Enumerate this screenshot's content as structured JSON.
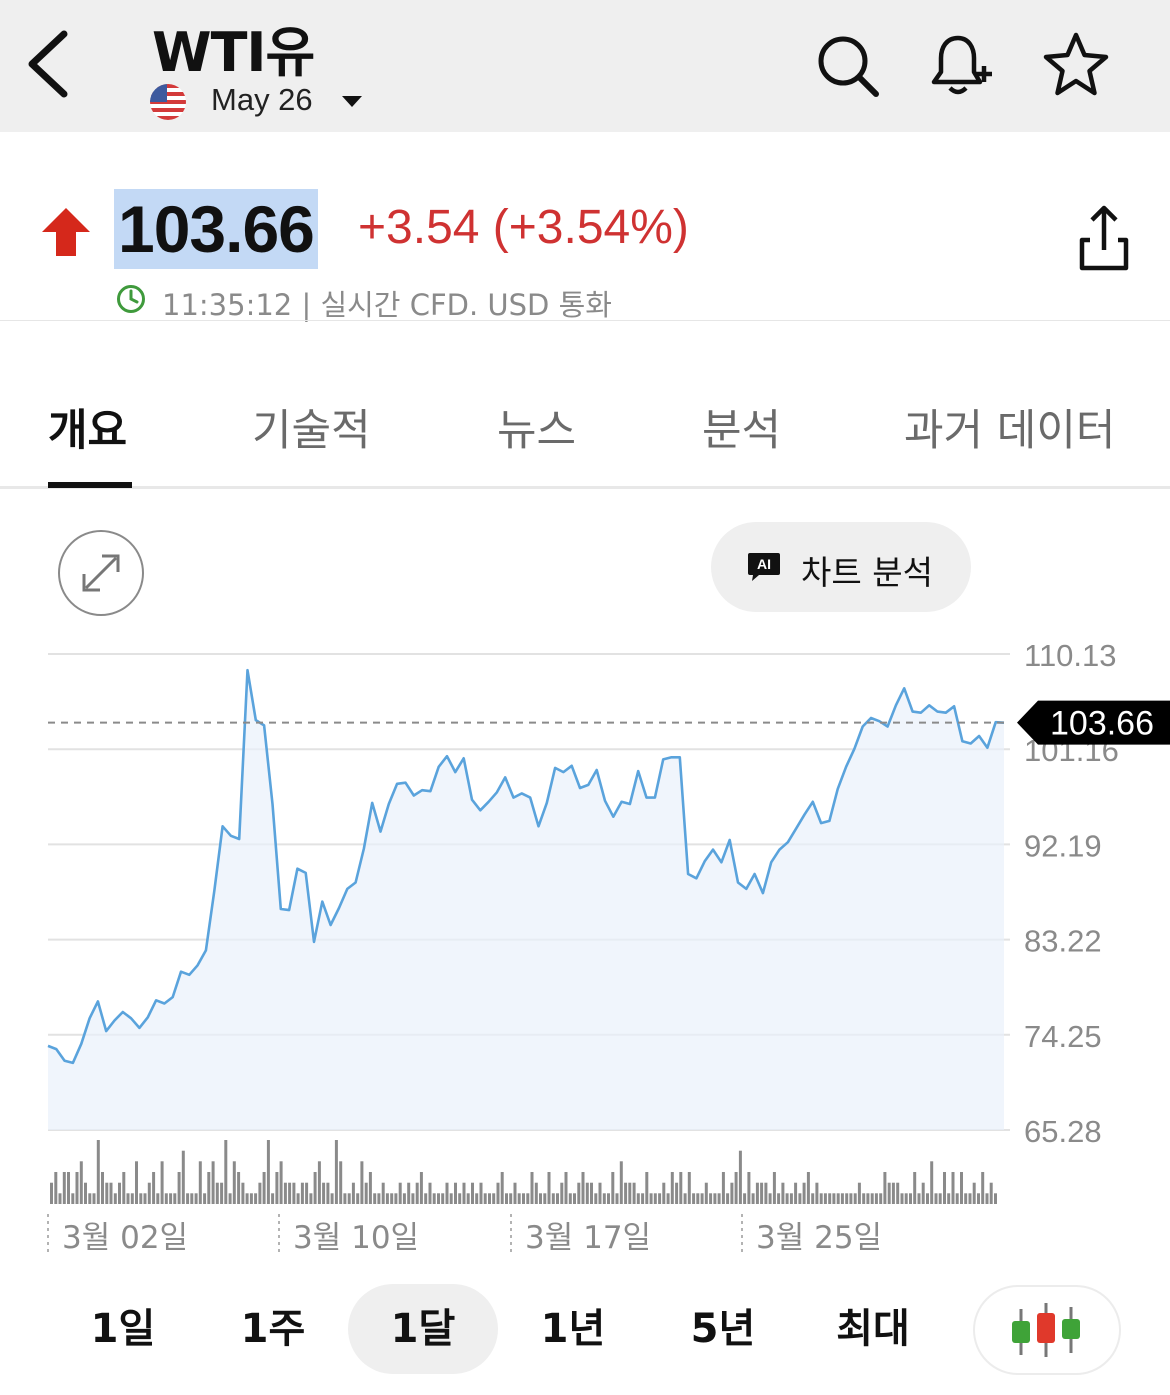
{
  "header": {
    "title": "WTI유",
    "contract_label": "May 26",
    "icons": [
      "back-arrow-icon",
      "us-flag-icon",
      "search-icon",
      "bell-plus-icon",
      "star-icon"
    ]
  },
  "quote": {
    "price": "103.66",
    "change": "+3.54 (+3.54%)",
    "time_info": "11:35:12 | 실시간 CFD. USD 통화",
    "direction": "up",
    "up_color": "#cf3232"
  },
  "tabs": [
    {
      "label": "개요",
      "active": true
    },
    {
      "label": "기술적",
      "active": false
    },
    {
      "label": "뉴스",
      "active": false
    },
    {
      "label": "분석",
      "active": false
    },
    {
      "label": "과거 데이터",
      "active": false
    }
  ],
  "ai_button": {
    "badge": "AI",
    "label": "차트 분석"
  },
  "timeframes": [
    {
      "label": "1일",
      "active": false
    },
    {
      "label": "1주",
      "active": false
    },
    {
      "label": "1달",
      "active": true
    },
    {
      "label": "1년",
      "active": false
    },
    {
      "label": "5년",
      "active": false
    },
    {
      "label": "최대",
      "active": false
    }
  ],
  "chart_data": {
    "type": "area",
    "y_ticks": [
      "110.13",
      "101.16",
      "92.19",
      "83.22",
      "74.25",
      "65.28"
    ],
    "ylim": [
      65.28,
      110.13
    ],
    "x_tick_labels": [
      "3월 02일",
      "3월 10일",
      "3월 17일",
      "3월 25일"
    ],
    "current_price_label": "103.66",
    "current_price": 103.66,
    "line_color": "#5aa3dc",
    "series": [
      {
        "values": [
          73.2,
          72.9,
          71.8,
          71.6,
          73.4,
          75.8,
          77.4,
          74.6,
          75.6,
          76.4,
          75.8,
          74.9,
          75.9,
          77.5,
          77.2,
          77.8,
          80.2,
          79.9,
          80.8,
          82.2,
          87.8,
          93.9,
          93.0,
          92.7,
          108.6,
          103.9,
          103.4,
          96.0,
          86.1,
          86.0,
          89.9,
          89.5,
          83.0,
          86.8,
          84.6,
          86.2,
          88.0,
          88.6,
          91.8,
          96.1,
          93.4,
          96.0,
          97.9,
          98.0,
          96.8,
          97.3,
          97.2,
          99.5,
          100.5,
          99.0,
          100.3,
          96.4,
          95.4,
          96.2,
          97.1,
          98.5,
          96.6,
          97.0,
          96.6,
          93.9,
          96.1,
          99.4,
          99.0,
          99.6,
          97.5,
          97.8,
          99.2,
          96.3,
          94.8,
          96.2,
          96.0,
          99.1,
          96.6,
          96.6,
          100.2,
          100.4,
          100.4,
          89.4,
          89.0,
          90.6,
          91.7,
          90.5,
          92.6,
          88.6,
          88.0,
          89.4,
          87.6,
          90.5,
          91.7,
          92.4,
          93.7,
          95.0,
          96.2,
          94.2,
          94.4,
          97.4,
          99.5,
          101.2,
          103.3,
          104.1,
          103.8,
          103.3,
          105.3,
          106.9,
          104.7,
          104.6,
          105.3,
          104.7,
          104.6,
          105.2,
          101.9,
          101.7,
          102.4,
          101.3,
          103.7,
          103.66
        ]
      }
    ],
    "volume": [
      2,
      3,
      1,
      3,
      3,
      1,
      3,
      4,
      2,
      1,
      1,
      6,
      3,
      2,
      2,
      1,
      2,
      3,
      1,
      1,
      4,
      1,
      1,
      2,
      3,
      1,
      4,
      1,
      1,
      1,
      3,
      5,
      1,
      1,
      1,
      4,
      1,
      3,
      4,
      2,
      2,
      6,
      1,
      4,
      3,
      2,
      1,
      1,
      1,
      2,
      3,
      6,
      1,
      3,
      4,
      2,
      2,
      2,
      1,
      2,
      2,
      1,
      3,
      4,
      2,
      2,
      1,
      6,
      4,
      1,
      1,
      2,
      1,
      4,
      2,
      3,
      1,
      1,
      2,
      1,
      1,
      1,
      2,
      1,
      2,
      1,
      2,
      3,
      1,
      2,
      1,
      1,
      1,
      2,
      1,
      2,
      1,
      2,
      1,
      2,
      1,
      2,
      1,
      1,
      1,
      2,
      3,
      1,
      1,
      2,
      1,
      1,
      1,
      3,
      2,
      1,
      1,
      3,
      1,
      1,
      2,
      3,
      1,
      1,
      2,
      3,
      2,
      2,
      1,
      2,
      1,
      1,
      3,
      1,
      4,
      2,
      2,
      2,
      1,
      1,
      3,
      1,
      1,
      1,
      2,
      1,
      3,
      2,
      3,
      1,
      3,
      1,
      1,
      1,
      2,
      1,
      1,
      1,
      3,
      1,
      2,
      3,
      5,
      1,
      3,
      1,
      2,
      2,
      2,
      1,
      3,
      1,
      2,
      1,
      1,
      2,
      1,
      2,
      3,
      1,
      2,
      1,
      1,
      1,
      1,
      1,
      1,
      1,
      1,
      1,
      2,
      1,
      1,
      1,
      1,
      1,
      3,
      2,
      2,
      2,
      1,
      1,
      1,
      3,
      1,
      2,
      1,
      4,
      1,
      1,
      3,
      1,
      3,
      1,
      3,
      1,
      1,
      2,
      1,
      3,
      1,
      2,
      1
    ]
  }
}
